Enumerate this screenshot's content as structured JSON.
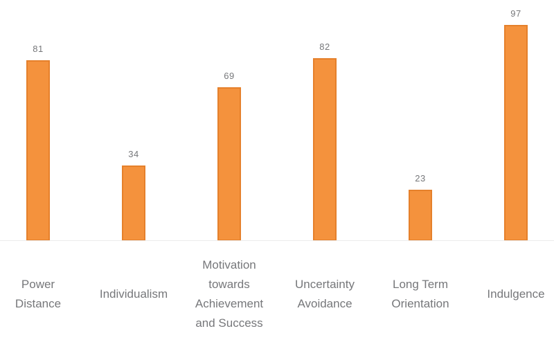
{
  "chart_data": {
    "type": "bar",
    "categories": [
      "Power Distance",
      "Individualism",
      "Motivation towards Achievement and Success",
      "Uncertainty Avoidance",
      "Long Term Orientation",
      "Indulgence"
    ],
    "category_label_lines": [
      [
        "Power",
        "Distance"
      ],
      [
        "Individualism"
      ],
      [
        "Motivation",
        "towards",
        "Achievement",
        "and Success"
      ],
      [
        "Uncertainty",
        "Avoidance"
      ],
      [
        "Long Term",
        "Orientation"
      ],
      [
        "Indulgence"
      ]
    ],
    "values": [
      81,
      34,
      69,
      82,
      23,
      97
    ],
    "data_labels": [
      "81",
      "34",
      "69",
      "82",
      "23",
      "97"
    ],
    "title": "",
    "xlabel": "",
    "ylabel": "",
    "ylim": [
      0,
      100
    ],
    "grid": false,
    "legend": false,
    "colors": {
      "bar_fill": "#f4923d",
      "bar_border": "#e5802b",
      "value_label": "#76777a",
      "category_label": "#76777a",
      "axis_line": "#ebebeb",
      "background": "#ffffff"
    }
  }
}
